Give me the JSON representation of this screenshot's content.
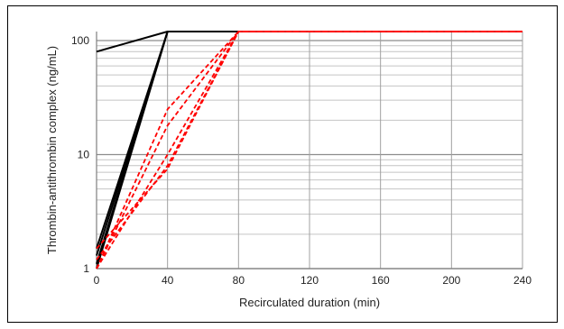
{
  "chart_data": {
    "type": "line",
    "xlabel": "Recirculated duration (min)",
    "ylabel": "Thrombin-antithrombin complex (ng/mL)",
    "xlim": [
      0,
      240
    ],
    "ylim": [
      1,
      120
    ],
    "y_scale": "log",
    "x_ticks": [
      "0",
      "40",
      "80",
      "120",
      "160",
      "200",
      "240"
    ],
    "y_ticks": [
      "1",
      "10",
      "100"
    ],
    "grid": true,
    "series": [
      {
        "group": "black",
        "style": "solid",
        "color": "#000000",
        "x": [
          0,
          40,
          240
        ],
        "y": [
          80,
          120,
          120
        ]
      },
      {
        "group": "black",
        "style": "solid",
        "color": "#000000",
        "x": [
          0,
          40,
          240
        ],
        "y": [
          1.0,
          120,
          120
        ]
      },
      {
        "group": "black",
        "style": "solid",
        "color": "#000000",
        "x": [
          0,
          40,
          240
        ],
        "y": [
          1.1,
          120,
          120
        ]
      },
      {
        "group": "black",
        "style": "solid",
        "color": "#000000",
        "x": [
          0,
          40,
          240
        ],
        "y": [
          1.3,
          120,
          120
        ]
      },
      {
        "group": "black",
        "style": "solid",
        "color": "#000000",
        "x": [
          0,
          40,
          240
        ],
        "y": [
          1.5,
          120,
          120
        ]
      },
      {
        "group": "red",
        "style": "dashed",
        "color": "#ff0000",
        "x": [
          0,
          40,
          80,
          240
        ],
        "y": [
          1.0,
          25,
          120,
          120
        ]
      },
      {
        "group": "red",
        "style": "dashed",
        "color": "#ff0000",
        "x": [
          0,
          40,
          80,
          240
        ],
        "y": [
          1.0,
          18,
          120,
          120
        ]
      },
      {
        "group": "red",
        "style": "dashed",
        "color": "#ff0000",
        "x": [
          0,
          40,
          80,
          240
        ],
        "y": [
          1.0,
          10,
          120,
          120
        ]
      },
      {
        "group": "red",
        "style": "dashed",
        "color": "#ff0000",
        "x": [
          0,
          40,
          80,
          240
        ],
        "y": [
          1.2,
          8,
          120,
          120
        ]
      },
      {
        "group": "red",
        "style": "dashed",
        "color": "#ff0000",
        "x": [
          0,
          40,
          80,
          240
        ],
        "y": [
          1.5,
          7.5,
          120,
          120
        ]
      }
    ]
  }
}
